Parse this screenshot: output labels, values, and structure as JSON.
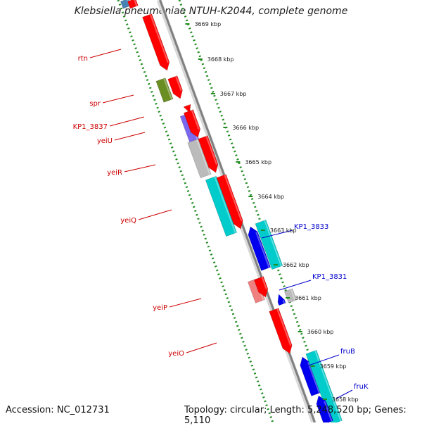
{
  "title": "Klebsiella pneumoniae NTUH-K2044, complete genome",
  "footer": {
    "accession": "Accession: NC_012731",
    "topology": "Topology: circular; Length: 5,248,520 bp; Genes: 5,110"
  },
  "ruler_ticks": [
    "3669 kbp",
    "3668 kbp",
    "3667 kbp",
    "3666 kbp",
    "3665 kbp",
    "3664 kbp",
    "3663 kbp",
    "3662 kbp",
    "3661 kbp",
    "3660 kbp",
    "3659 kbp",
    "3658 kbp"
  ],
  "genes_left": [
    "rtn",
    "spr",
    "KP1_3837",
    "yeiU",
    "yeiR",
    "yeiQ",
    "yeiP",
    "yeiO"
  ],
  "genes_right": [
    "KP1_3833",
    "KP1_3831",
    "fruB",
    "fruK"
  ],
  "colors": {
    "forward": "#ff0000",
    "forward_light": "#f08080",
    "reverse": "#0000ee",
    "cyan": "#00cccc",
    "gray": "#bbbbbb",
    "olive": "#6b8e23",
    "purple": "#7b68ee",
    "steel": "#4682b4",
    "label_left": "#cc0000",
    "label_right": "#0000cc",
    "dots": "#228b22"
  }
}
